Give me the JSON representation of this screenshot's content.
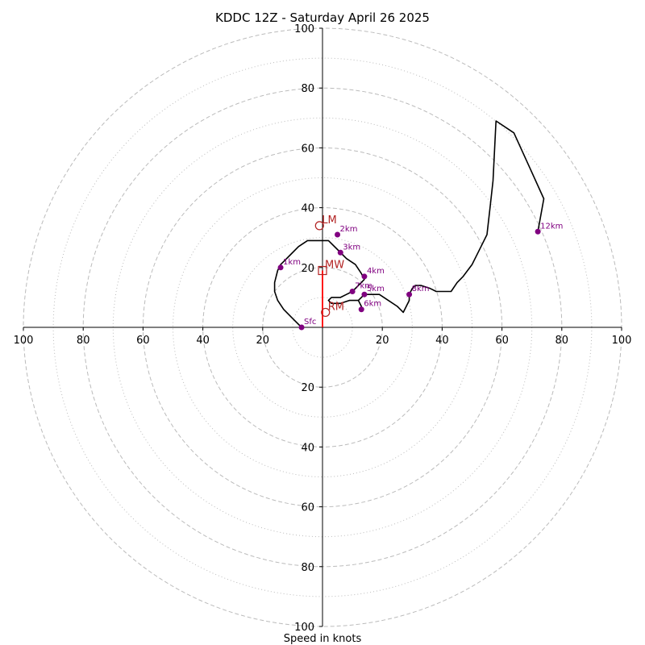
{
  "chart_data": {
    "type": "hodograph",
    "title": "KDDC 12Z - Saturday April 26 2025",
    "xlabel": "Speed in knots",
    "units": "knots",
    "ring_major": [
      20,
      40,
      60,
      80,
      100
    ],
    "ring_minor": [
      10,
      30,
      50,
      70,
      90
    ],
    "x_tick_labels": [
      "100",
      "80",
      "60",
      "40",
      "20",
      "20",
      "40",
      "60",
      "80",
      "100"
    ],
    "y_tick_labels": [
      "100",
      "80",
      "60",
      "40",
      "20",
      "20",
      "40",
      "60",
      "80",
      "100"
    ],
    "xlim": [
      -100,
      100
    ],
    "ylim": [
      -100,
      100
    ],
    "grid": true,
    "colors": {
      "trace": "#000000",
      "height_markers": "#800080",
      "motion": "#b22222",
      "mean_wind_line": "#ff0000",
      "grid": "#bbbbbb",
      "axes": "#000000"
    },
    "trace": [
      [
        -7,
        0
      ],
      [
        -10,
        3
      ],
      [
        -13,
        6
      ],
      [
        -15,
        9
      ],
      [
        -16,
        12
      ],
      [
        -16,
        15
      ],
      [
        -15,
        19
      ],
      [
        -14,
        21
      ],
      [
        -13,
        22
      ],
      [
        -11,
        24
      ],
      [
        -8,
        27
      ],
      [
        -5,
        29
      ],
      [
        -3,
        29
      ],
      [
        0,
        29
      ],
      [
        2,
        29
      ],
      [
        5,
        26
      ],
      [
        8,
        23
      ],
      [
        11,
        21
      ],
      [
        13,
        18
      ],
      [
        14,
        16
      ],
      [
        12,
        14
      ],
      [
        10,
        12
      ],
      [
        8,
        11
      ],
      [
        6,
        10
      ],
      [
        3,
        10
      ],
      [
        2,
        9
      ],
      [
        3,
        8
      ],
      [
        4,
        8
      ],
      [
        6,
        8
      ],
      [
        9,
        9
      ],
      [
        12,
        9
      ],
      [
        13,
        7
      ],
      [
        12,
        9
      ],
      [
        13,
        10
      ],
      [
        14,
        11
      ],
      [
        17,
        11
      ],
      [
        19,
        11
      ],
      [
        22,
        9
      ],
      [
        25,
        7
      ],
      [
        26,
        6
      ],
      [
        27,
        5
      ],
      [
        28,
        7
      ],
      [
        29,
        9
      ],
      [
        29,
        11
      ],
      [
        30,
        13
      ],
      [
        31,
        14
      ],
      [
        33,
        14
      ],
      [
        36,
        13
      ],
      [
        38,
        12
      ],
      [
        40,
        12
      ],
      [
        42,
        12
      ],
      [
        43,
        12
      ],
      [
        45,
        15
      ],
      [
        47,
        17
      ],
      [
        50,
        21
      ],
      [
        52,
        25
      ],
      [
        55,
        31
      ],
      [
        56,
        40
      ],
      [
        57,
        49
      ],
      [
        58,
        69
      ],
      [
        64,
        65
      ],
      [
        69,
        54
      ],
      [
        74,
        43
      ],
      [
        72,
        32
      ]
    ],
    "height_markers": [
      {
        "label": "Sfc",
        "u": -7,
        "v": 0
      },
      {
        "label": "1km",
        "u": -14,
        "v": 20
      },
      {
        "label": "2km",
        "u": 5,
        "v": 31
      },
      {
        "label": "3km",
        "u": 6,
        "v": 25
      },
      {
        "label": "4km",
        "u": 14,
        "v": 17
      },
      {
        "label": "5km",
        "u": 14,
        "v": 11
      },
      {
        "label": "6km",
        "u": 13,
        "v": 6
      },
      {
        "label": "7km",
        "u": 10,
        "v": 12
      },
      {
        "label": "8km",
        "u": 29,
        "v": 11
      },
      {
        "label": "12km",
        "u": 72,
        "v": 32
      }
    ],
    "storm_motion": [
      {
        "label": "LM",
        "u": -1,
        "v": 34,
        "marker": "circle"
      },
      {
        "label": "MW",
        "u": 0,
        "v": 19,
        "marker": "square"
      },
      {
        "label": "RM",
        "u": 1,
        "v": 5,
        "marker": "circle"
      }
    ],
    "mean_wind_line": {
      "from": [
        0,
        0
      ],
      "to": [
        0,
        19
      ]
    }
  }
}
